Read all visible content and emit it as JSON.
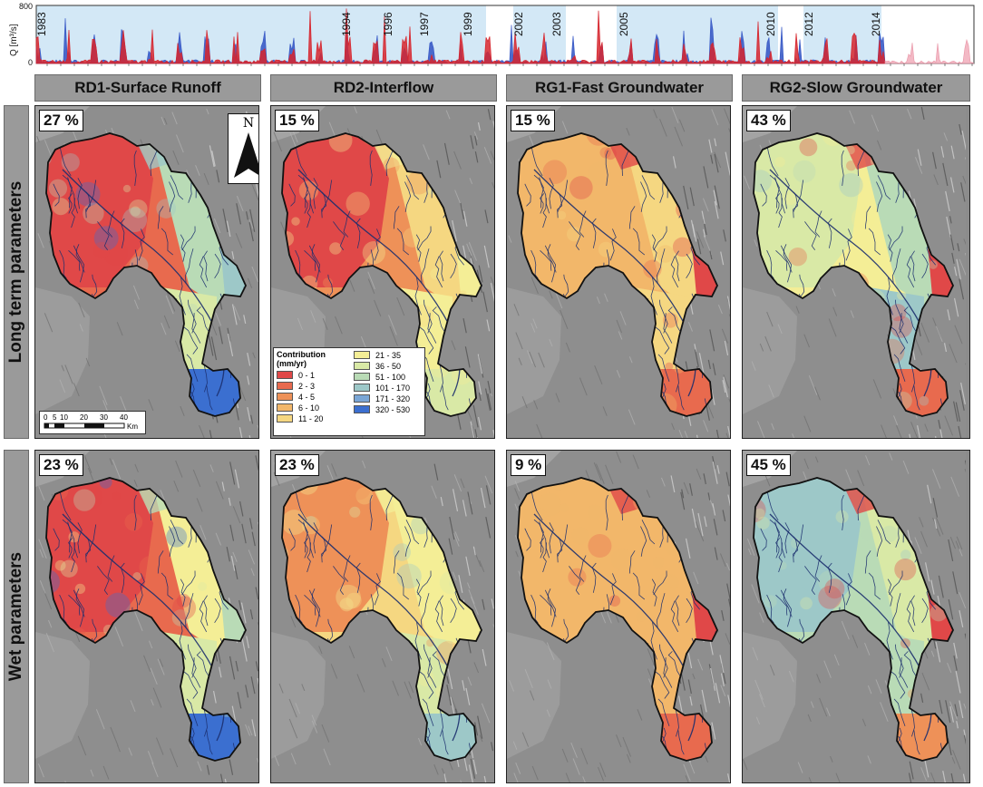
{
  "hydrograph": {
    "ylabel": "Q [m³/s]",
    "y_ticks": [
      "800",
      "0"
    ],
    "highlighted_years": [
      "1983",
      "1994",
      "1996",
      "1997",
      "1999",
      "2002",
      "2003",
      "2005",
      "2010",
      "2012",
      "2014"
    ]
  },
  "columns": [
    {
      "label": "RD1-Surface Runoff"
    },
    {
      "label": "RD2-Interflow"
    },
    {
      "label": "RG1-Fast Groundwater"
    },
    {
      "label": "RG2-Slow Groundwater"
    }
  ],
  "rows": [
    {
      "label": "Long term parameters",
      "percentages": [
        "27 %",
        "15 %",
        "15 %",
        "43 %"
      ]
    },
    {
      "label": "Wet parameters",
      "percentages": [
        "23 %",
        "23 %",
        "9 %",
        "45 %"
      ]
    }
  ],
  "north_arrow": {
    "label": "N"
  },
  "scale_bar": {
    "ticks": [
      "0",
      "5",
      "10",
      "20",
      "30",
      "40"
    ],
    "unit": "Km"
  },
  "legend": {
    "title": "Contribution (mm/yr)",
    "title_line1": "Contribution",
    "title_line2": "(mm/yr)",
    "classes": [
      {
        "label": "0 - 1",
        "color": "#e04848"
      },
      {
        "label": "2 - 3",
        "color": "#e86a4e"
      },
      {
        "label": "4 - 5",
        "color": "#ee9158"
      },
      {
        "label": "6 - 10",
        "color": "#f2b76a"
      },
      {
        "label": "11 - 20",
        "color": "#f5d781"
      },
      {
        "label": "21 - 35",
        "color": "#f4ee96"
      },
      {
        "label": "36 - 50",
        "color": "#d9e9a6"
      },
      {
        "label": "51 - 100",
        "color": "#b9dbb6"
      },
      {
        "label": "101 - 170",
        "color": "#9dc8c8"
      },
      {
        "label": "171 - 320",
        "color": "#7aa6d6"
      },
      {
        "label": "320 - 530",
        "color": "#3b6fd0"
      }
    ]
  }
}
